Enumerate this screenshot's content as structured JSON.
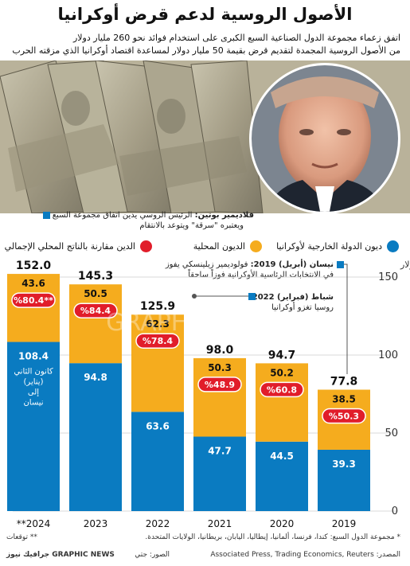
{
  "title": "الأصول الروسية لدعم قرض أوكرانيا",
  "subtitle_line1": "اتفق زعماء مجموعة الدول الصناعية السبع الكبرى على استخدام فوائد نحو 260 مليار دولار",
  "subtitle_line2": "من الأصول الروسية المجمدة لتقديم قرض بقيمة 50 مليار دولار لمساعدة اقتصاد أوكرانيا الذي مزقته الحرب",
  "annotations": {
    "putin_name": "فلاديمير بوتين:",
    "putin_text1": "الرئيس الروسي يدين اتفاق مجموعة السبع",
    "putin_text2": "ويعتبره \"سرقة\" ويتوعد بالانتقام",
    "zelensky_name": "نيسان (أبريل) 2019:",
    "zelensky_text1": "فولوديمير زيلينسكي يفوز",
    "zelensky_text2": "في الانتخابات الرئاسية الأوكرانية فوزاً ساحقاً",
    "invasion_name": "شباط (فبراير) 2022:",
    "invasion_text": "روسيا تغزو أوكرانيا",
    "month_range": [
      "كانون الثاني",
      "(يناير)",
      "إلى",
      "نيسان"
    ]
  },
  "legend": {
    "gdp_ratio": "الدين مقارنة بالناتج المحلي الإجمالي",
    "domestic": "الديون المحلية",
    "external": "ديون الدولة الخارجية لأوكرانيا"
  },
  "colors": {
    "external": "#0a7bc1",
    "domestic": "#f5ac1e",
    "ratio_badge": "#e11d2a",
    "axis_text": "#333333"
  },
  "chart_data": {
    "type": "bar",
    "stacked": true,
    "ylabel": "مليار دولار",
    "ylim": [
      0,
      150
    ],
    "yticks": [
      0,
      50,
      100,
      150
    ],
    "categories": [
      "2019",
      "2020",
      "2021",
      "2022",
      "2023",
      "2024"
    ],
    "category_labels": [
      "2019",
      "2020",
      "2021",
      "2022",
      "2023",
      "**2024"
    ],
    "series": [
      {
        "name": "ديون الدولة الخارجية لأوكرانيا",
        "values": [
          39.3,
          44.5,
          47.7,
          63.6,
          94.8,
          108.4
        ]
      },
      {
        "name": "الديون المحلية",
        "values": [
          38.5,
          50.2,
          50.3,
          62.3,
          50.5,
          43.6
        ]
      }
    ],
    "totals": [
      77.8,
      94.7,
      98.0,
      125.9,
      145.3,
      152.0
    ],
    "total_labels": [
      "77.8",
      "94.7",
      "98.0",
      "125.9",
      "145.3",
      "152.0"
    ],
    "gdp_ratio_labels": [
      "%50.3",
      "%60.8",
      "%48.9",
      "%78.4",
      "%84.4",
      "%80.4**"
    ],
    "gdp_ratio": [
      50.3,
      60.8,
      48.9,
      78.4,
      84.4,
      80.4
    ]
  },
  "footer": {
    "note_g7": "* مجموعة الدول السبع: كندا، فرنسا، ألمانيا، إيطاليا، اليابان، بريطانيا، الولايات المتحدة.",
    "note_forecast": "** توقعات",
    "source": "المصدر: Associated Press, Trading Economics, Reuters",
    "photo_credit": "الصور: جتي",
    "brand": "GRAPHIC NEWS جرافيك نيوز",
    "watermark": "GRAPHIC NEWS"
  }
}
